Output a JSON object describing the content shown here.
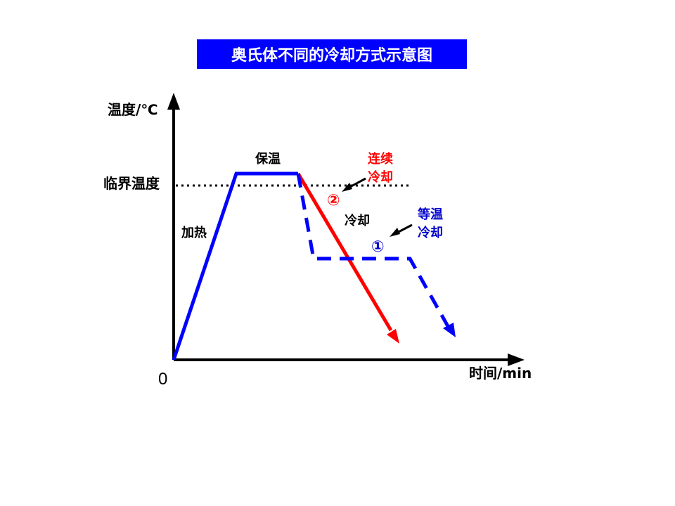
{
  "title": "奥氏体不同的冷却方式示意图",
  "axes": {
    "y_label": "温度/℃",
    "x_label": "时间/min",
    "origin": "0",
    "critical_temp_label": "临界温度"
  },
  "stages": {
    "heating": "加热",
    "holding": "保温",
    "cooling": "冷却"
  },
  "methods": [
    {
      "marker": "②",
      "name_line1": "连续",
      "name_line2": "冷却",
      "color": "#ff0000"
    },
    {
      "marker": "①",
      "name_line1": "等温",
      "name_line2": "冷却",
      "color": "#0000cc"
    }
  ],
  "colors": {
    "heating_holding": "#0000ff",
    "continuous_cooling": "#ff0000",
    "isothermal_cooling": "#0000ff",
    "axes": "#000000"
  }
}
